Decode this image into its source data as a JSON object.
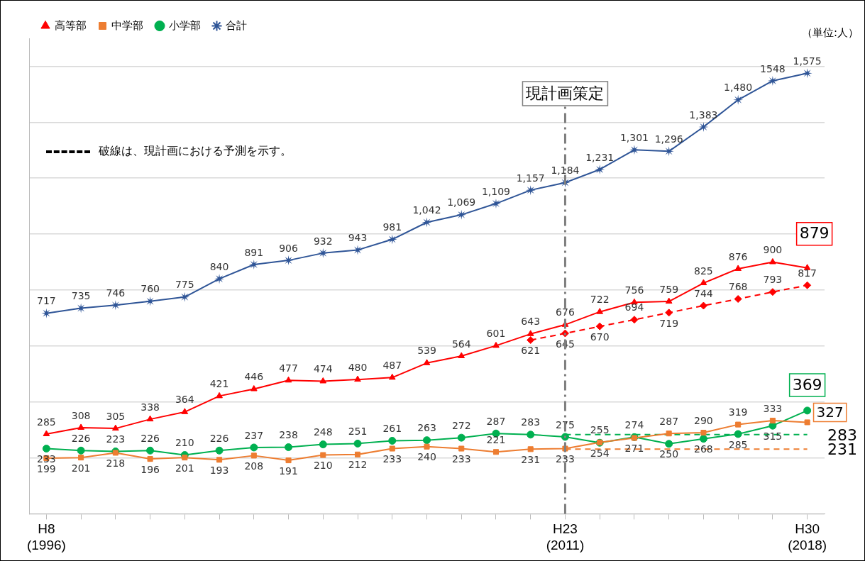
{
  "chart_data": {
    "type": "line",
    "categories": [
      "H8\n(1996)",
      null,
      null,
      null,
      null,
      null,
      null,
      null,
      null,
      null,
      null,
      null,
      null,
      null,
      null,
      "H23\n(2011)",
      null,
      null,
      null,
      null,
      null,
      null,
      "H30\n(2018)"
    ],
    "ylim": [
      0,
      1700
    ],
    "yticks": [
      {
        "value": 0,
        "label": null
      },
      {
        "value": 200,
        "label": null
      },
      {
        "value": 400,
        "label": null
      },
      {
        "value": 600,
        "label": null
      },
      {
        "value": 800,
        "label": null
      },
      {
        "value": 1000,
        "label": null
      },
      {
        "value": 1200,
        "label": null
      },
      {
        "value": 1400,
        "label": null
      },
      {
        "value": 1600,
        "label": null
      }
    ],
    "tick_labels": "x",
    "grid": "y",
    "legend": "top left",
    "series": [
      {
        "name": "高等部",
        "color": "#ff0000",
        "marker": "triangle",
        "values": [
          285,
          308,
          305,
          338,
          364,
          421,
          446,
          477,
          474,
          480,
          487,
          539,
          564,
          601,
          643,
          676,
          722,
          756,
          759,
          825,
          876,
          900,
          879
        ],
        "value_labels": [
          "285",
          "308",
          "305",
          "338",
          "364",
          "421",
          "446",
          "477",
          "474",
          "480",
          "487",
          "539",
          "564",
          "601",
          "643",
          "676",
          "722",
          "756",
          "759",
          "825",
          "876",
          "900",
          "879"
        ]
      },
      {
        "name": "中学部",
        "color": "#ed7d31",
        "marker": "square",
        "values": [
          199,
          201,
          218,
          196,
          201,
          193,
          208,
          191,
          210,
          212,
          233,
          240,
          233,
          221,
          231,
          233,
          255,
          271,
          287,
          290,
          319,
          333,
          327
        ],
        "value_labels": [
          "199",
          "201",
          "218",
          "196",
          "201",
          "193",
          "208",
          "191",
          "210",
          "212",
          "233",
          "240",
          "233",
          "221",
          "231",
          "233",
          "255",
          "271",
          "287",
          "290",
          "319",
          "333",
          "327"
        ]
      },
      {
        "name": "小学部",
        "color": "#00b050",
        "marker": "circle",
        "values": [
          233,
          226,
          223,
          226,
          210,
          226,
          237,
          238,
          248,
          251,
          261,
          263,
          272,
          287,
          283,
          275,
          254,
          274,
          250,
          268,
          285,
          315,
          369
        ],
        "value_labels": [
          "233",
          "226",
          "223",
          "226",
          "210",
          "226",
          "237",
          "238",
          "248",
          "251",
          "261",
          "263",
          "272",
          "287",
          "283",
          "275",
          "254",
          "274",
          "250",
          "268",
          "285",
          "315",
          "369"
        ]
      },
      {
        "name": "合計",
        "color": "#2f5597",
        "marker": "star",
        "values": [
          717,
          735,
          746,
          760,
          775,
          840,
          891,
          906,
          932,
          943,
          981,
          1042,
          1069,
          1109,
          1157,
          1184,
          1231,
          1301,
          1296,
          1383,
          1480,
          1548,
          1575
        ],
        "value_labels": [
          "717",
          "735",
          "746",
          "760",
          "775",
          "840",
          "891",
          "906",
          "932",
          "943",
          "981",
          "1,042",
          "1,069",
          "1,109",
          "1,157",
          "1,184",
          "1,231",
          "1,301",
          "1,296",
          "1,383",
          "1,480",
          "1548",
          "1,575"
        ]
      },
      {
        "color": "#ff0000",
        "marker": "diamond",
        "line_style": "dashed",
        "values": [
          null,
          null,
          null,
          null,
          null,
          null,
          null,
          null,
          null,
          null,
          null,
          null,
          null,
          null,
          621,
          645,
          670,
          694,
          719,
          744,
          768,
          793,
          817
        ],
        "value_labels": [
          null,
          null,
          null,
          null,
          null,
          null,
          null,
          null,
          null,
          null,
          null,
          null,
          null,
          null,
          "621",
          "645",
          "670",
          "694",
          "719",
          "744",
          "768",
          "793",
          "817"
        ]
      },
      {
        "color": "#00b050",
        "marker": "none",
        "line_style": "dashed",
        "values": [
          null,
          null,
          null,
          null,
          null,
          null,
          null,
          null,
          null,
          null,
          null,
          null,
          null,
          null,
          null,
          283,
          283,
          283,
          283,
          283,
          283,
          283,
          283
        ],
        "value_labels": [
          null,
          null,
          null,
          null,
          null,
          null,
          null,
          null,
          null,
          null,
          null,
          null,
          null,
          null,
          null,
          null,
          null,
          null,
          null,
          null,
          null,
          null,
          "283"
        ]
      },
      {
        "color": "#ed7d31",
        "marker": "none",
        "line_style": "dashed",
        "values": [
          null,
          null,
          null,
          null,
          null,
          null,
          null,
          null,
          null,
          null,
          null,
          null,
          null,
          null,
          null,
          231,
          231,
          231,
          231,
          231,
          231,
          231,
          231
        ],
        "value_labels": [
          null,
          null,
          null,
          null,
          null,
          null,
          null,
          null,
          null,
          null,
          null,
          null,
          null,
          null,
          null,
          null,
          null,
          null,
          null,
          null,
          null,
          null,
          "231"
        ]
      }
    ],
    "ref_lines": [
      {
        "axis": "x",
        "value": "H23\n(2011)",
        "label": "現計画策定",
        "color": "#7f7f7f",
        "line_style": "dashdot"
      }
    ],
    "annotations": [
      "（単位:人）",
      "破線は、現計画における予測を示す。"
    ]
  }
}
